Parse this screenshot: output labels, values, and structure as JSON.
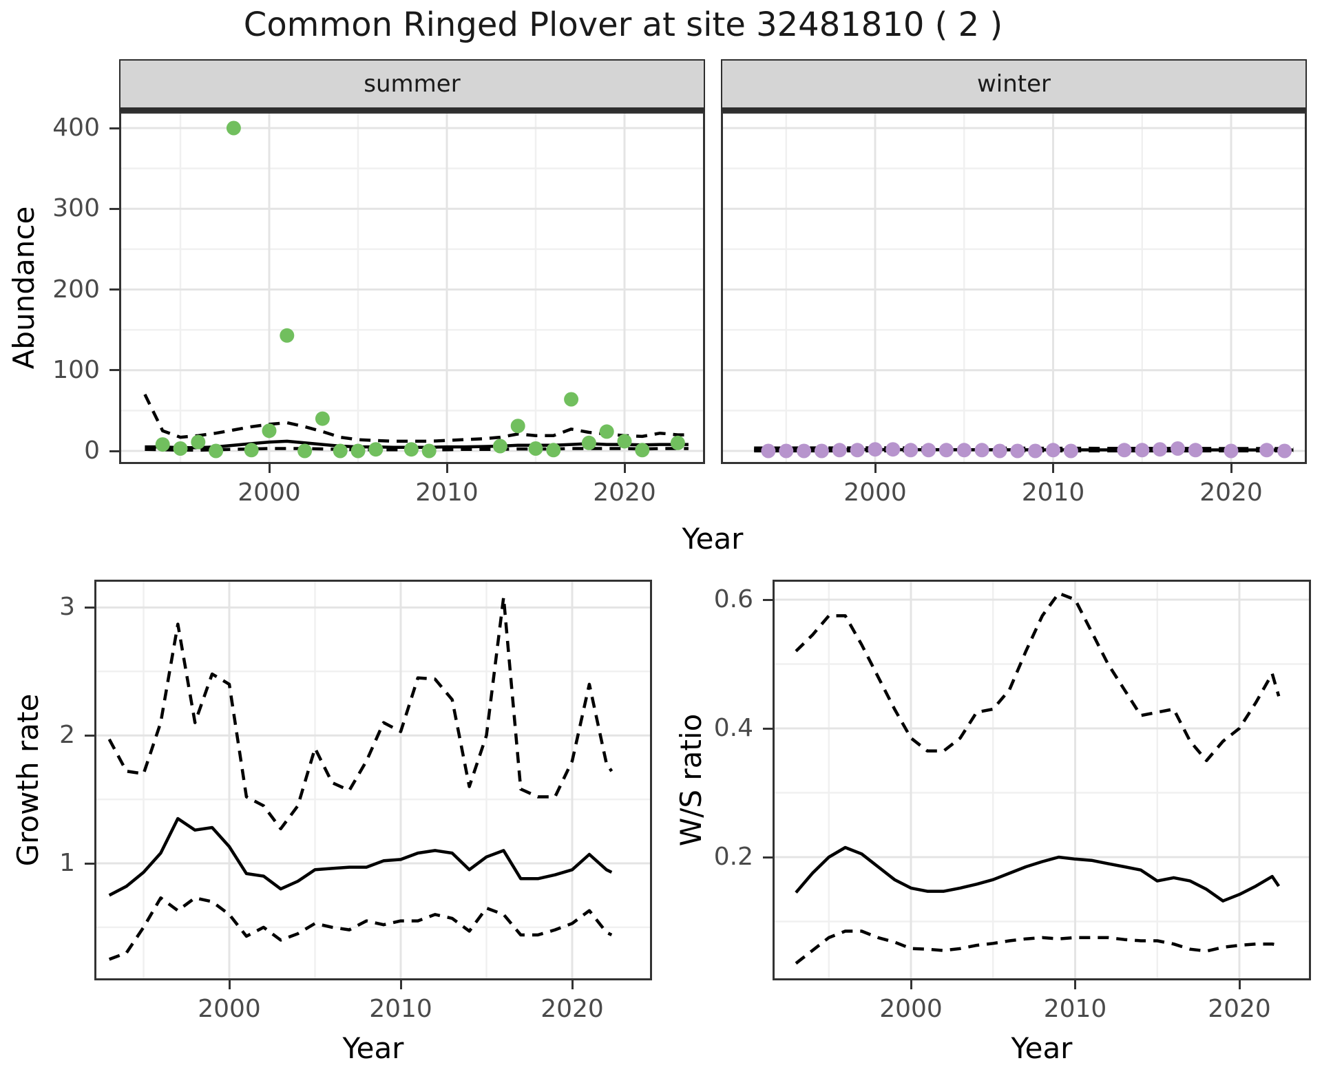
{
  "title": "Common Ringed Plover at site 32481810 ( 2 )",
  "facets": {
    "summer": "summer",
    "winter": "winter"
  },
  "axes": {
    "top": {
      "x_label": "Year",
      "y_label": "Abundance"
    },
    "growth": {
      "x_label": "Year",
      "y_label": "Growth rate"
    },
    "ws": {
      "x_label": "Year",
      "y_label": "W/S ratio"
    }
  },
  "colors": {
    "summer_point": "#71bf5e",
    "winter_point": "#b794cd",
    "fit_line": "#000000",
    "panel_border": "#333333",
    "grid_major": "#e4e4e4",
    "grid_minor": "#f0f0f0",
    "strip_bg": "#d5d5d5",
    "tick_mark": "#333333",
    "tick_text": "#4a4a4a"
  },
  "chart_data": [
    {
      "id": "abundance-summer",
      "type": "scatter",
      "facet": "summer",
      "title": "Common Ringed Plover at site 32481810 ( 2 )",
      "xlabel": "Year",
      "ylabel": "Abundance",
      "xlim": [
        1991.5,
        2024.5
      ],
      "ylim": [
        -15,
        420
      ],
      "x_ticks": [
        2000,
        2010,
        2020
      ],
      "x_tick_labels": [
        "2000",
        "2010",
        "2020"
      ],
      "x_minor": [
        1995,
        2005,
        2015
      ],
      "y_ticks": [
        0,
        100,
        200,
        300,
        400
      ],
      "y_tick_labels": [
        "0",
        "100",
        "200",
        "300",
        "400"
      ],
      "y_minor": [
        50,
        150,
        250,
        350
      ],
      "show_y_ticks": true,
      "point_color": "#71bf5e",
      "points": {
        "years": [
          1994,
          1995,
          1996,
          1997,
          1998,
          1999,
          2000,
          2001,
          2002,
          2003,
          2004,
          2005,
          2006,
          2008,
          2009,
          2013,
          2014,
          2015,
          2016,
          2017,
          2018,
          2019,
          2020,
          2021,
          2023
        ],
        "values": [
          8,
          3,
          11,
          0,
          400,
          1,
          25,
          143,
          0,
          40,
          0,
          0,
          2,
          2,
          0,
          6,
          31,
          3,
          1,
          64,
          10,
          24,
          12,
          1,
          10
        ]
      },
      "fit": {
        "years": [
          1993,
          1994,
          1995,
          1996,
          1997,
          1998,
          1999,
          2000,
          2001,
          2002,
          2003,
          2004,
          2005,
          2006,
          2007,
          2008,
          2009,
          2010,
          2011,
          2012,
          2013,
          2014,
          2015,
          2016,
          2017,
          2018,
          2019,
          2020,
          2021,
          2022,
          2023,
          2023.6
        ],
        "mean": [
          5,
          5,
          4,
          4,
          5,
          7,
          9,
          11,
          12,
          10,
          8,
          6,
          5,
          5,
          4.5,
          4.5,
          4.5,
          5,
          5,
          5.5,
          6,
          7,
          7,
          7,
          8,
          9,
          8,
          8,
          7.5,
          8,
          8,
          8
        ],
        "upper": [
          70,
          25,
          17,
          19,
          22,
          26,
          30,
          33,
          35,
          30,
          24,
          17,
          14,
          13,
          12,
          12,
          12,
          13,
          14,
          15,
          17,
          21,
          19,
          19,
          27,
          23,
          21,
          19,
          18,
          22,
          20,
          20
        ],
        "lower": [
          2,
          1.5,
          1,
          1,
          1.5,
          2,
          2.5,
          3,
          3,
          3,
          2.5,
          2,
          1.5,
          1.5,
          1.5,
          1.5,
          1.5,
          1.5,
          2,
          2,
          2,
          2.5,
          2.5,
          2.5,
          3,
          3,
          3,
          3,
          2.5,
          3,
          3,
          3
        ]
      }
    },
    {
      "id": "abundance-winter",
      "type": "scatter",
      "facet": "winter",
      "xlabel": "Year",
      "ylabel": "Abundance",
      "xlim": [
        1991.3,
        2024.3
      ],
      "ylim": [
        -15,
        420
      ],
      "x_ticks": [
        2000,
        2010,
        2020
      ],
      "x_tick_labels": [
        "2000",
        "2010",
        "2020"
      ],
      "x_minor": [
        1995,
        2005,
        2015
      ],
      "y_ticks": [
        0,
        100,
        200,
        300,
        400
      ],
      "y_tick_labels": [
        "0",
        "100",
        "200",
        "300",
        "400"
      ],
      "y_minor": [
        50,
        150,
        250,
        350
      ],
      "show_y_ticks": false,
      "point_color": "#b794cd",
      "points": {
        "years": [
          1994,
          1995,
          1996,
          1997,
          1998,
          1999,
          2000,
          2001,
          2002,
          2003,
          2004,
          2005,
          2006,
          2007,
          2008,
          2009,
          2010,
          2011,
          2014,
          2015,
          2016,
          2017,
          2018,
          2020,
          2022,
          2023
        ],
        "values": [
          0,
          0,
          0,
          0,
          1,
          1,
          2,
          2,
          1,
          1,
          1,
          1,
          1,
          0,
          0,
          0,
          1,
          0,
          1,
          1,
          2,
          3,
          1,
          0,
          1,
          0
        ]
      },
      "fit": {
        "years": [
          1993.2,
          2000,
          2010,
          2023.5
        ],
        "mean": [
          1.6,
          1.7,
          1.4,
          1.2
        ],
        "upper": [
          3.6,
          3.8,
          3.3,
          2.9
        ],
        "lower": [
          0.1,
          0.1,
          0.1,
          0.1
        ]
      }
    },
    {
      "id": "growth-rate",
      "type": "line",
      "xlabel": "Year",
      "ylabel": "Growth rate",
      "xlim": [
        1992.1,
        2024.8
      ],
      "ylim": [
        0.09,
        3.22
      ],
      "x_ticks": [
        2000,
        2010,
        2020
      ],
      "x_tick_labels": [
        "2000",
        "2010",
        "2020"
      ],
      "x_minor": [
        1995,
        2005,
        2015
      ],
      "y_ticks": [
        1,
        2,
        3
      ],
      "y_tick_labels": [
        "1",
        "2",
        "3"
      ],
      "y_minor": [
        0.5,
        1.5,
        2.5
      ],
      "show_y_ticks": true,
      "fit": {
        "years": [
          1993,
          1994,
          1995,
          1996,
          1997,
          1998,
          1999,
          2000,
          2001,
          2002,
          2003,
          2004,
          2005,
          2006,
          2007,
          2008,
          2009,
          2010,
          2011,
          2012,
          2013,
          2014,
          2015,
          2016,
          2017,
          2018,
          2019,
          2020,
          2021,
          2022,
          2022.3
        ],
        "mean": [
          0.75,
          0.82,
          0.93,
          1.08,
          1.35,
          1.26,
          1.28,
          1.13,
          0.92,
          0.9,
          0.8,
          0.86,
          0.95,
          0.96,
          0.97,
          0.97,
          1.02,
          1.03,
          1.08,
          1.1,
          1.08,
          0.95,
          1.05,
          1.1,
          0.88,
          0.88,
          0.91,
          0.95,
          1.07,
          0.95,
          0.93
        ],
        "upper": [
          1.97,
          1.72,
          1.7,
          2.1,
          2.87,
          2.1,
          2.48,
          2.4,
          1.52,
          1.45,
          1.27,
          1.45,
          1.9,
          1.63,
          1.57,
          1.8,
          2.1,
          2.03,
          2.45,
          2.44,
          2.28,
          1.6,
          2.0,
          3.08,
          1.58,
          1.52,
          1.52,
          1.8,
          2.4,
          1.78,
          1.72
        ],
        "lower": [
          0.25,
          0.3,
          0.5,
          0.73,
          0.63,
          0.73,
          0.7,
          0.6,
          0.43,
          0.5,
          0.4,
          0.45,
          0.53,
          0.5,
          0.48,
          0.55,
          0.52,
          0.55,
          0.55,
          0.6,
          0.57,
          0.47,
          0.65,
          0.6,
          0.44,
          0.44,
          0.48,
          0.53,
          0.63,
          0.46,
          0.44
        ]
      }
    },
    {
      "id": "ws-ratio",
      "type": "line",
      "xlabel": "Year",
      "ylabel": "W/S ratio",
      "xlim": [
        1991.6,
        2024.4
      ],
      "ylim": [
        0.01,
        0.63
      ],
      "x_ticks": [
        2000,
        2010,
        2020
      ],
      "x_tick_labels": [
        "2000",
        "2010",
        "2020"
      ],
      "x_minor": [
        1995,
        2005,
        2015
      ],
      "y_ticks": [
        0.2,
        0.4,
        0.6
      ],
      "y_tick_labels": [
        "0.2",
        "0.4",
        "0.6"
      ],
      "y_minor": [
        0.1,
        0.3,
        0.5
      ],
      "show_y_ticks": true,
      "fit": {
        "years": [
          1993,
          1994,
          1995,
          1996,
          1997,
          1998,
          1999,
          2000,
          2001,
          2002,
          2003,
          2004,
          2005,
          2006,
          2007,
          2008,
          2009,
          2010,
          2011,
          2012,
          2013,
          2014,
          2015,
          2016,
          2017,
          2018,
          2019,
          2020,
          2021,
          2022,
          2022.4
        ],
        "mean": [
          0.145,
          0.175,
          0.2,
          0.215,
          0.205,
          0.185,
          0.165,
          0.152,
          0.147,
          0.147,
          0.152,
          0.158,
          0.165,
          0.175,
          0.185,
          0.193,
          0.2,
          0.197,
          0.195,
          0.19,
          0.185,
          0.18,
          0.163,
          0.168,
          0.163,
          0.15,
          0.132,
          0.142,
          0.155,
          0.17,
          0.155
        ],
        "upper": [
          0.52,
          0.545,
          0.575,
          0.575,
          0.53,
          0.48,
          0.43,
          0.385,
          0.365,
          0.365,
          0.385,
          0.425,
          0.43,
          0.46,
          0.52,
          0.575,
          0.61,
          0.6,
          0.55,
          0.5,
          0.46,
          0.42,
          0.425,
          0.43,
          0.38,
          0.35,
          0.38,
          0.4,
          0.44,
          0.485,
          0.45
        ],
        "lower": [
          0.035,
          0.055,
          0.075,
          0.085,
          0.085,
          0.075,
          0.068,
          0.058,
          0.057,
          0.055,
          0.058,
          0.063,
          0.066,
          0.07,
          0.073,
          0.075,
          0.073,
          0.075,
          0.075,
          0.075,
          0.072,
          0.07,
          0.07,
          0.065,
          0.057,
          0.054,
          0.06,
          0.063,
          0.065,
          0.065,
          0.063
        ]
      }
    }
  ]
}
